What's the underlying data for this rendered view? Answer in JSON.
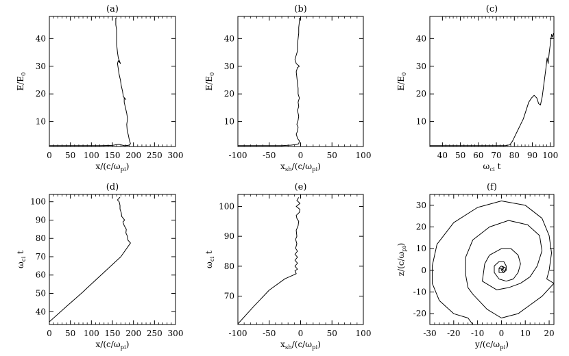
{
  "chart_data": [
    {
      "type": "line",
      "title": "(a)",
      "xlabel": "x/(c/ω_pi)",
      "ylabel": "E/E_0",
      "xlim": [
        0,
        300
      ],
      "ylim": [
        1,
        48
      ],
      "x_ticks": [
        0,
        50,
        100,
        150,
        200,
        250,
        300
      ],
      "y_ticks": [
        10,
        20,
        30,
        40
      ],
      "grid": false,
      "series": [
        {
          "points": [
            [
              0,
              1.3
            ],
            [
              40,
              1.3
            ],
            [
              80,
              1.3
            ],
            [
              120,
              1.3
            ],
            [
              150,
              1.4
            ],
            [
              165,
              1.8
            ],
            [
              178,
              1.3
            ],
            [
              188,
              1.4
            ],
            [
              193,
              2
            ],
            [
              190,
              3.5
            ],
            [
              188,
              5
            ],
            [
              185,
              7
            ],
            [
              184,
              9
            ],
            [
              186,
              11
            ],
            [
              184,
              13
            ],
            [
              181,
              15
            ],
            [
              178,
              17
            ],
            [
              178,
              18.5
            ],
            [
              182,
              18
            ],
            [
              176,
              19
            ],
            [
              174,
              21
            ],
            [
              171,
              23
            ],
            [
              169,
              25
            ],
            [
              166,
              27
            ],
            [
              164,
              29
            ],
            [
              162,
              31
            ],
            [
              164,
              32
            ],
            [
              169,
              31
            ],
            [
              164,
              33
            ],
            [
              162,
              35
            ],
            [
              160,
              38
            ],
            [
              160,
              41
            ],
            [
              160,
              43
            ],
            [
              158,
              45
            ],
            [
              158,
              47.5
            ]
          ]
        }
      ]
    },
    {
      "type": "line",
      "title": "(b)",
      "xlabel": "x_sh/(c/ω_pi)",
      "ylabel": "E/E_0",
      "xlim": [
        -100,
        100
      ],
      "ylim": [
        1,
        48
      ],
      "x_ticks": [
        -100,
        -50,
        0,
        50,
        100
      ],
      "y_ticks": [
        10,
        20,
        30,
        40
      ],
      "grid": false,
      "series": [
        {
          "points": [
            [
              -100,
              1.3
            ],
            [
              -60,
              1.3
            ],
            [
              -30,
              1.3
            ],
            [
              -15,
              1.5
            ],
            [
              -8,
              1.7
            ],
            [
              -3,
              2
            ],
            [
              -2,
              3
            ],
            [
              -5,
              4
            ],
            [
              -7,
              5.5
            ],
            [
              -5,
              6.5
            ],
            [
              -4,
              8
            ],
            [
              -6,
              9
            ],
            [
              -4,
              10.5
            ],
            [
              -3,
              12
            ],
            [
              -5,
              14
            ],
            [
              -3,
              15.5
            ],
            [
              -4,
              17
            ],
            [
              -2,
              18.5
            ],
            [
              -4,
              20
            ],
            [
              -4,
              22
            ],
            [
              -5,
              24
            ],
            [
              -6,
              26
            ],
            [
              -7,
              28
            ],
            [
              -5,
              29.5
            ],
            [
              -2,
              30
            ],
            [
              -7,
              31
            ],
            [
              -9,
              32.5
            ],
            [
              -7,
              34
            ],
            [
              -5,
              35.5
            ],
            [
              -5,
              38
            ],
            [
              -4,
              40
            ],
            [
              -3,
              42
            ],
            [
              -3,
              44
            ],
            [
              -2,
              46
            ],
            [
              -2,
              47.5
            ]
          ]
        }
      ]
    },
    {
      "type": "line",
      "title": "(c)",
      "xlabel": "ω_ci t",
      "ylabel": "E/E_0",
      "xlim": [
        33,
        102
      ],
      "ylim": [
        1,
        48
      ],
      "x_ticks": [
        40,
        50,
        60,
        70,
        80,
        90,
        100
      ],
      "y_ticks": [
        10,
        20,
        30,
        40
      ],
      "grid": false,
      "series": [
        {
          "points": [
            [
              33,
              1.3
            ],
            [
              50,
              1.3
            ],
            [
              65,
              1.3
            ],
            [
              75,
              1.3
            ],
            [
              77.5,
              1.6
            ],
            [
              79,
              3
            ],
            [
              80.5,
              5
            ],
            [
              82,
              7
            ],
            [
              83.5,
              9
            ],
            [
              85,
              11
            ],
            [
              86.5,
              14
            ],
            [
              88,
              17
            ],
            [
              89.5,
              18.5
            ],
            [
              91,
              19.5
            ],
            [
              92.5,
              18.5
            ],
            [
              93.5,
              16.5
            ],
            [
              94.5,
              16
            ],
            [
              95.5,
              19
            ],
            [
              96.5,
              24
            ],
            [
              97.5,
              29
            ],
            [
              98.2,
              33
            ],
            [
              98.8,
              31
            ],
            [
              99.4,
              35
            ],
            [
              100.2,
              39
            ],
            [
              100.7,
              41.5
            ],
            [
              101.3,
              40.5
            ],
            [
              101.8,
              42
            ]
          ]
        }
      ]
    },
    {
      "type": "line",
      "title": "(d)",
      "xlabel": "x/(c/ω_pi)",
      "ylabel": "ω_ci t",
      "xlim": [
        0,
        300
      ],
      "ylim": [
        33,
        104
      ],
      "x_ticks": [
        0,
        50,
        100,
        150,
        200,
        250,
        300
      ],
      "y_ticks": [
        40,
        50,
        60,
        70,
        80,
        90,
        100
      ],
      "grid": false,
      "series": [
        {
          "points": [
            [
              0,
              34.5
            ],
            [
              40,
              42.7
            ],
            [
              80,
              50.8
            ],
            [
              90,
              53
            ],
            [
              130,
              61.5
            ],
            [
              170,
              70
            ],
            [
              193,
              77.5
            ],
            [
              187,
              79
            ],
            [
              186,
              81
            ],
            [
              182,
              83
            ],
            [
              183,
              85
            ],
            [
              178,
              87
            ],
            [
              175,
              89
            ],
            [
              179,
              90
            ],
            [
              172,
              92
            ],
            [
              171,
              94
            ],
            [
              168,
              96
            ],
            [
              168,
              98
            ],
            [
              166,
              100
            ],
            [
              162,
              101
            ],
            [
              168,
              102.5
            ]
          ]
        }
      ]
    },
    {
      "type": "line",
      "title": "(e)",
      "xlabel": "x_sh/(c/ω_pi)",
      "ylabel": "ω_ci t",
      "xlim": [
        -100,
        100
      ],
      "ylim": [
        60.5,
        104
      ],
      "x_ticks": [
        -100,
        -50,
        0,
        50,
        100
      ],
      "y_ticks": [
        70,
        80,
        90,
        100
      ],
      "grid": false,
      "series": [
        {
          "points": [
            [
              -100,
              60.7
            ],
            [
              -75,
              66.5
            ],
            [
              -50,
              72
            ],
            [
              -25,
              75.8
            ],
            [
              -12,
              77
            ],
            [
              -7,
              77.5
            ],
            [
              -9,
              78.5
            ],
            [
              -5,
              79
            ],
            [
              -9,
              80
            ],
            [
              -5,
              81
            ],
            [
              -9,
              82
            ],
            [
              -5,
              83
            ],
            [
              -9,
              84
            ],
            [
              -5,
              85
            ],
            [
              -8,
              86
            ],
            [
              -6,
              87.5
            ],
            [
              -8,
              89
            ],
            [
              -6,
              90
            ],
            [
              -7,
              92
            ],
            [
              -4,
              93.5
            ],
            [
              -3,
              95
            ],
            [
              -6,
              96
            ],
            [
              -7,
              97
            ],
            [
              -2,
              98
            ],
            [
              -1,
              99
            ],
            [
              -7,
              100
            ],
            [
              -1,
              101
            ],
            [
              -6,
              102
            ],
            [
              -3,
              103
            ]
          ]
        }
      ]
    },
    {
      "type": "line",
      "title": "(f)",
      "xlabel": "y/(c/ω_pi)",
      "ylabel": "z/(c/ω_pi)",
      "xlim": [
        -30,
        22
      ],
      "ylim": [
        -25,
        35
      ],
      "x_ticks": [
        -30,
        -20,
        -10,
        0,
        10,
        20
      ],
      "y_ticks": [
        -20,
        -10,
        0,
        10,
        20,
        30
      ],
      "grid": false,
      "series": [
        {
          "points": [
            [
              -12,
              -25
            ],
            [
              -14,
              -22
            ],
            [
              -20,
              -20
            ],
            [
              -26,
              -14
            ],
            [
              -29,
              -6
            ],
            [
              -29,
              2
            ],
            [
              -27,
              12
            ],
            [
              -20,
              22
            ],
            [
              -10,
              29
            ],
            [
              0,
              32
            ],
            [
              10,
              30
            ],
            [
              17,
              24
            ],
            [
              20,
              16
            ],
            [
              21,
              8
            ],
            [
              20,
              0
            ],
            [
              19,
              -4
            ],
            [
              22,
              -6
            ],
            [
              17,
              -12
            ],
            [
              12,
              -16
            ],
            [
              7,
              -20
            ],
            [
              0,
              -22
            ],
            [
              -6,
              -18
            ],
            [
              -12,
              -11
            ],
            [
              -14,
              -8
            ],
            [
              -15,
              -2
            ],
            [
              -15,
              6
            ],
            [
              -12,
              14
            ],
            [
              -5,
              20
            ],
            [
              3,
              23
            ],
            [
              11,
              21
            ],
            [
              16,
              16
            ],
            [
              17,
              9
            ],
            [
              15,
              2
            ],
            [
              12,
              -3
            ],
            [
              8,
              -6
            ],
            [
              3,
              -8
            ],
            [
              -2,
              -9
            ],
            [
              -8,
              -5
            ],
            [
              -7,
              3
            ],
            [
              -5,
              7
            ],
            [
              0,
              10
            ],
            [
              4,
              10
            ],
            [
              7,
              7
            ],
            [
              8,
              3
            ],
            [
              7,
              -1
            ],
            [
              5,
              -4
            ],
            [
              2,
              -5
            ],
            [
              -1,
              -4
            ],
            [
              -3,
              -1
            ],
            [
              -3,
              2
            ],
            [
              -1,
              4
            ],
            [
              1,
              4
            ],
            [
              2,
              2
            ],
            [
              2,
              0
            ],
            [
              1,
              -1
            ],
            [
              -1,
              -1
            ],
            [
              -1,
              1
            ],
            [
              0,
              2
            ],
            [
              1,
              1
            ],
            [
              0,
              0
            ],
            [
              1,
              -1
            ],
            [
              2,
              1
            ],
            [
              0,
              2
            ],
            [
              -1,
              1
            ],
            [
              1,
              0
            ],
            [
              0,
              1
            ]
          ]
        }
      ]
    }
  ]
}
